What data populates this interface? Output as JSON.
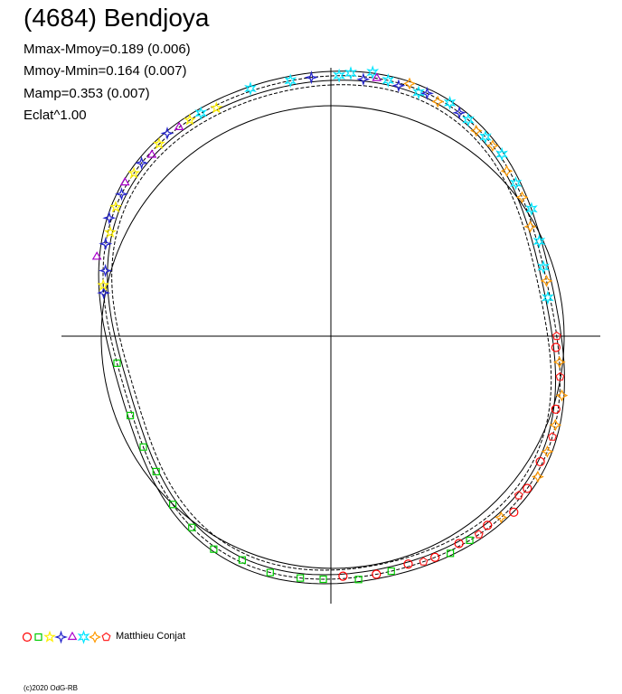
{
  "title": "(4684) Bendjoya",
  "stats": [
    "Mmax-Mmoy=0.189 (0.006)",
    "Mmoy-Mmin=0.164 (0.007)",
    "Mamp=0.353 (0.007)",
    "Eclat^1.00"
  ],
  "legend_author": "Matthieu Conjat",
  "copyright": "(c)2020 OdG-RB",
  "colors": {
    "circle": "#ff0000",
    "square": "#00cc00",
    "star4": "#2222cc",
    "triangle": "#aa00cc",
    "star6": "#00e5ff",
    "diamond": "#ff9900",
    "pentagon": "#ff2222",
    "yellow": "#ffee00"
  },
  "chart_data": {
    "type": "scatter",
    "projection": "polar",
    "legend_markers": [
      "circle",
      "square",
      "yellow-star",
      "star4",
      "triangle",
      "star6",
      "diamond",
      "pentagon"
    ],
    "legend_colors": [
      "#ff0000",
      "#00cc00",
      "#ffee00",
      "#2222cc",
      "#aa00cc",
      "#00e5ff",
      "#ff9900",
      "#ff2222"
    ],
    "fit_amplitudes": {
      "max": 0.189,
      "min": 0.164,
      "amp": 0.353
    },
    "points": [
      {
        "marker": "star6",
        "color": "#00e5ff",
        "phase": 0.005,
        "radius": 1.0
      },
      {
        "marker": "star6",
        "color": "#00e5ff",
        "phase": 0.012,
        "radius": 1.01
      },
      {
        "marker": "star4",
        "color": "#2222cc",
        "phase": 0.02,
        "radius": 0.99
      },
      {
        "marker": "star6",
        "color": "#00e5ff",
        "phase": 0.025,
        "radius": 1.02
      },
      {
        "marker": "triangle",
        "color": "#aa00cc",
        "phase": 0.028,
        "radius": 1.0
      },
      {
        "marker": "star6",
        "color": "#00e5ff",
        "phase": 0.035,
        "radius": 1.0
      },
      {
        "marker": "star4",
        "color": "#2222cc",
        "phase": 0.042,
        "radius": 0.99
      },
      {
        "marker": "diamond",
        "color": "#ff9900",
        "phase": 0.048,
        "radius": 1.01
      },
      {
        "marker": "star6",
        "color": "#00e5ff",
        "phase": 0.055,
        "radius": 0.99
      },
      {
        "marker": "star4",
        "color": "#2222cc",
        "phase": 0.06,
        "radius": 1.0
      },
      {
        "marker": "diamond",
        "color": "#ff9900",
        "phase": 0.068,
        "radius": 0.99
      },
      {
        "marker": "star6",
        "color": "#00e5ff",
        "phase": 0.075,
        "radius": 1.01
      },
      {
        "marker": "star4",
        "color": "#2222cc",
        "phase": 0.083,
        "radius": 1.0
      },
      {
        "marker": "star6",
        "color": "#00e5ff",
        "phase": 0.09,
        "radius": 1.0
      },
      {
        "marker": "diamond",
        "color": "#ff9900",
        "phase": 0.098,
        "radius": 0.99
      },
      {
        "marker": "star6",
        "color": "#00e5ff",
        "phase": 0.105,
        "radius": 1.0
      },
      {
        "marker": "diamond",
        "color": "#ff9900",
        "phase": 0.112,
        "radius": 1.0
      },
      {
        "marker": "star6",
        "color": "#00e5ff",
        "phase": 0.12,
        "radius": 1.01
      },
      {
        "marker": "diamond",
        "color": "#ff9900",
        "phase": 0.13,
        "radius": 0.99
      },
      {
        "marker": "star6",
        "color": "#00e5ff",
        "phase": 0.14,
        "radius": 1.0
      },
      {
        "marker": "diamond",
        "color": "#ff9900",
        "phase": 0.15,
        "radius": 1.0
      },
      {
        "marker": "star6",
        "color": "#00e5ff",
        "phase": 0.16,
        "radius": 1.02
      },
      {
        "marker": "diamond",
        "color": "#ff9900",
        "phase": 0.17,
        "radius": 0.99
      },
      {
        "marker": "star6",
        "color": "#00e5ff",
        "phase": 0.182,
        "radius": 1.01
      },
      {
        "marker": "star6",
        "color": "#00e5ff",
        "phase": 0.2,
        "radius": 1.0
      },
      {
        "marker": "diamond",
        "color": "#ff9900",
        "phase": 0.21,
        "radius": 1.0
      },
      {
        "marker": "star6",
        "color": "#00e5ff",
        "phase": 0.222,
        "radius": 0.99
      },
      {
        "marker": "pentagon",
        "color": "#ff2222",
        "phase": 0.25,
        "radius": 1.0
      },
      {
        "marker": "circle",
        "color": "#ff0000",
        "phase": 0.258,
        "radius": 0.99
      },
      {
        "marker": "diamond",
        "color": "#ff9900",
        "phase": 0.268,
        "radius": 1.0
      },
      {
        "marker": "pentagon",
        "color": "#ff2222",
        "phase": 0.278,
        "radius": 1.0
      },
      {
        "marker": "diamond",
        "color": "#ff9900",
        "phase": 0.29,
        "radius": 1.01
      },
      {
        "marker": "circle",
        "color": "#ff0000",
        "phase": 0.3,
        "radius": 0.99
      },
      {
        "marker": "diamond",
        "color": "#ff9900",
        "phase": 0.31,
        "radius": 1.0
      },
      {
        "marker": "pentagon",
        "color": "#ff2222",
        "phase": 0.318,
        "radius": 1.0
      },
      {
        "marker": "diamond",
        "color": "#ff9900",
        "phase": 0.328,
        "radius": 1.0
      },
      {
        "marker": "circle",
        "color": "#ff0000",
        "phase": 0.336,
        "radius": 0.99
      },
      {
        "marker": "diamond",
        "color": "#ff9900",
        "phase": 0.345,
        "radius": 1.01
      },
      {
        "marker": "circle",
        "color": "#ff0000",
        "phase": 0.355,
        "radius": 1.0
      },
      {
        "marker": "pentagon",
        "color": "#ff2222",
        "phase": 0.362,
        "radius": 0.99
      },
      {
        "marker": "circle",
        "color": "#ff0000",
        "phase": 0.372,
        "radius": 1.02
      },
      {
        "marker": "diamond",
        "color": "#ff9900",
        "phase": 0.38,
        "radius": 1.0
      },
      {
        "marker": "circle",
        "color": "#ff0000",
        "phase": 0.39,
        "radius": 0.99
      },
      {
        "marker": "pentagon",
        "color": "#ff2222",
        "phase": 0.398,
        "radius": 1.0
      },
      {
        "marker": "square",
        "color": "#00cc00",
        "phase": 0.405,
        "radius": 1.0
      },
      {
        "marker": "circle",
        "color": "#ff0000",
        "phase": 0.412,
        "radius": 0.99
      },
      {
        "marker": "square",
        "color": "#00cc00",
        "phase": 0.42,
        "radius": 1.01
      },
      {
        "marker": "circle",
        "color": "#ff0000",
        "phase": 0.43,
        "radius": 1.0
      },
      {
        "marker": "pentagon",
        "color": "#ff2222",
        "phase": 0.438,
        "radius": 1.0
      },
      {
        "marker": "circle",
        "color": "#ff0000",
        "phase": 0.448,
        "radius": 0.99
      },
      {
        "marker": "square",
        "color": "#00cc00",
        "phase": 0.46,
        "radius": 1.0
      },
      {
        "marker": "circle",
        "color": "#ff0000",
        "phase": 0.47,
        "radius": 1.0
      },
      {
        "marker": "square",
        "color": "#00cc00",
        "phase": 0.482,
        "radius": 1.01
      },
      {
        "marker": "circle",
        "color": "#ff0000",
        "phase": 0.492,
        "radius": 0.99
      },
      {
        "marker": "square",
        "color": "#00cc00",
        "phase": 0.505,
        "radius": 1.0
      },
      {
        "marker": "square",
        "color": "#00cc00",
        "phase": 0.52,
        "radius": 1.0
      },
      {
        "marker": "square",
        "color": "#00cc00",
        "phase": 0.54,
        "radius": 1.0
      },
      {
        "marker": "square",
        "color": "#00cc00",
        "phase": 0.56,
        "radius": 0.99
      },
      {
        "marker": "square",
        "color": "#00cc00",
        "phase": 0.58,
        "radius": 1.01
      },
      {
        "marker": "square",
        "color": "#00cc00",
        "phase": 0.6,
        "radius": 1.0
      },
      {
        "marker": "square",
        "color": "#00cc00",
        "phase": 0.62,
        "radius": 1.0
      },
      {
        "marker": "square",
        "color": "#00cc00",
        "phase": 0.645,
        "radius": 0.99
      },
      {
        "marker": "square",
        "color": "#00cc00",
        "phase": 0.665,
        "radius": 1.0
      },
      {
        "marker": "square",
        "color": "#00cc00",
        "phase": 0.69,
        "radius": 1.01
      },
      {
        "marker": "square",
        "color": "#00cc00",
        "phase": 0.73,
        "radius": 1.0
      },
      {
        "marker": "star4",
        "color": "#2222cc",
        "phase": 0.78,
        "radius": 1.0
      },
      {
        "marker": "yellow-star",
        "color": "#ffee00",
        "phase": 0.785,
        "radius": 1.0
      },
      {
        "marker": "star4",
        "color": "#2222cc",
        "phase": 0.795,
        "radius": 0.99
      },
      {
        "marker": "triangle",
        "color": "#aa00cc",
        "phase": 0.802,
        "radius": 1.03
      },
      {
        "marker": "star4",
        "color": "#2222cc",
        "phase": 0.812,
        "radius": 1.0
      },
      {
        "marker": "yellow-star",
        "color": "#ffee00",
        "phase": 0.82,
        "radius": 0.99
      },
      {
        "marker": "star4",
        "color": "#2222cc",
        "phase": 0.828,
        "radius": 1.01
      },
      {
        "marker": "yellow-star",
        "color": "#ffee00",
        "phase": 0.836,
        "radius": 1.0
      },
      {
        "marker": "star4",
        "color": "#2222cc",
        "phase": 0.845,
        "radius": 1.0
      },
      {
        "marker": "triangle",
        "color": "#aa00cc",
        "phase": 0.852,
        "radius": 1.01
      },
      {
        "marker": "yellow-star",
        "color": "#ffee00",
        "phase": 0.86,
        "radius": 1.0
      },
      {
        "marker": "star4",
        "color": "#2222cc",
        "phase": 0.868,
        "radius": 1.0
      },
      {
        "marker": "triangle",
        "color": "#aa00cc",
        "phase": 0.876,
        "radius": 0.99
      },
      {
        "marker": "yellow-star",
        "color": "#ffee00",
        "phase": 0.884,
        "radius": 1.0
      },
      {
        "marker": "star4",
        "color": "#2222cc",
        "phase": 0.892,
        "radius": 1.01
      },
      {
        "marker": "triangle",
        "color": "#aa00cc",
        "phase": 0.9,
        "radius": 1.0
      },
      {
        "marker": "yellow-star",
        "color": "#ffee00",
        "phase": 0.908,
        "radius": 1.0
      },
      {
        "marker": "star6",
        "color": "#00e5ff",
        "phase": 0.916,
        "radius": 1.0
      },
      {
        "marker": "yellow-star",
        "color": "#ffee00",
        "phase": 0.926,
        "radius": 0.99
      },
      {
        "marker": "star6",
        "color": "#00e5ff",
        "phase": 0.95,
        "radius": 1.01
      },
      {
        "marker": "star6",
        "color": "#00e5ff",
        "phase": 0.975,
        "radius": 1.0
      },
      {
        "marker": "star4",
        "color": "#2222cc",
        "phase": 0.988,
        "radius": 1.0
      }
    ]
  }
}
